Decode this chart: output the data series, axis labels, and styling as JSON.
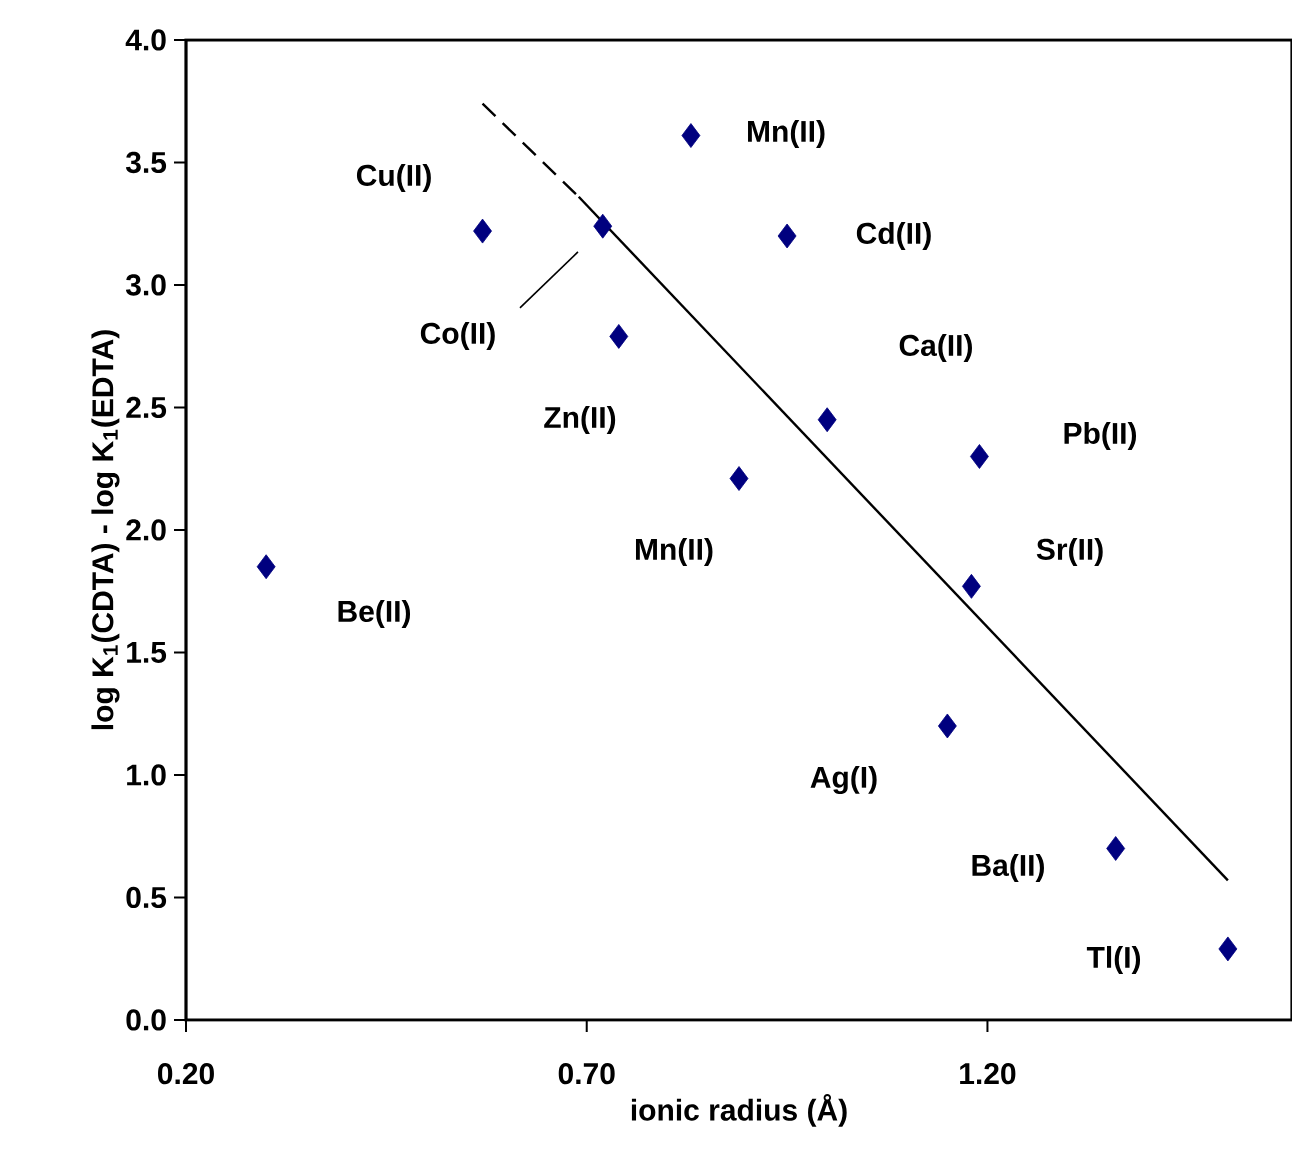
{
  "chart_data": {
    "type": "scatter",
    "xlabel": "ionic radius (Å)",
    "ylabel": "log K$_{1}$(CDTA) - log K$_{1}$(EDTA)",
    "xlim": [
      0.2,
      1.58
    ],
    "ylim": [
      0,
      4
    ],
    "xticks": [
      {
        "value": 0.2,
        "label": "0.20"
      },
      {
        "value": 0.7,
        "label": "0.70"
      },
      {
        "value": 1.2,
        "label": "1.20"
      }
    ],
    "yticks": [
      {
        "value": 0,
        "label": "0.0"
      },
      {
        "value": 0.5,
        "label": "0.5"
      },
      {
        "value": 1,
        "label": "1.0"
      },
      {
        "value": 1.5,
        "label": "1.5"
      },
      {
        "value": 2,
        "label": "2.0"
      },
      {
        "value": 2.5,
        "label": "2.5"
      },
      {
        "value": 3,
        "label": "3.0"
      },
      {
        "value": 3.5,
        "label": "3.5"
      },
      {
        "value": 4,
        "label": "4.0"
      }
    ],
    "grid": false,
    "marker": "diamond",
    "series": [
      {
        "color": "#00007f",
        "x": [
          0.3,
          0.57,
          0.72,
          0.74,
          0.83,
          0.89,
          0.95,
          1.0,
          1.15,
          1.18,
          1.19,
          1.36,
          1.5
        ],
        "values": [
          1.85,
          3.22,
          3.24,
          2.79,
          3.61,
          2.21,
          3.2,
          2.45,
          1.2,
          1.77,
          2.3,
          0.7,
          0.29
        ]
      },
      {
        "color": "#000000",
        "line_style": "dashed",
        "marker": "none",
        "type": "line",
        "x": [
          0.57,
          0.69
        ],
        "values": [
          3.74,
          3.36
        ]
      },
      {
        "type": "line",
        "color": "#000000",
        "line_style": "solid",
        "marker": "none",
        "x": [
          0.69,
          1.5
        ],
        "values": [
          3.36,
          0.57
        ]
      }
    ],
    "annotations": [
      "Be(II)",
      "Cu(II)",
      "Co(II)",
      "Zn(II)",
      "Mn(II)",
      "Mn(II)",
      "Cd(II)",
      "Ca(II)",
      "Ag(I)",
      "Sr(II)",
      "Pb(II)",
      "Ba(II)",
      "Tl(I)"
    ]
  }
}
